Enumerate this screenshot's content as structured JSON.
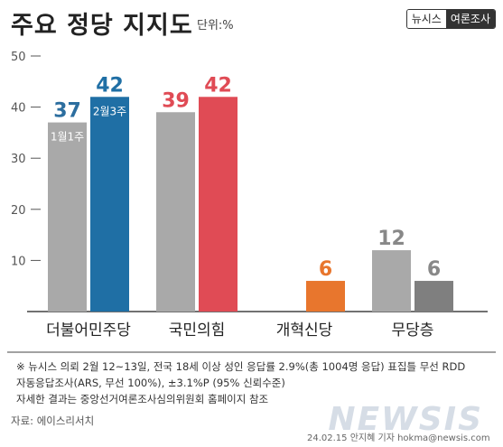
{
  "header": {
    "title": "주요 정당 지지도",
    "unit": "단위:%",
    "brand_left": "뉴시스",
    "brand_right": "여론조사"
  },
  "chart_data": {
    "type": "bar",
    "title": "주요 정당 지지도",
    "xlabel": "",
    "ylabel": "",
    "ylim": [
      0,
      50
    ],
    "yticks": [
      10,
      20,
      30,
      40,
      50
    ],
    "categories": [
      "더불어민주당",
      "국민의힘",
      "개혁신당",
      "무당층"
    ],
    "series": [
      {
        "name": "1월1주",
        "values": [
          37,
          39,
          null,
          12
        ]
      },
      {
        "name": "2월3주",
        "values": [
          42,
          42,
          6,
          6
        ]
      }
    ],
    "colors": {
      "prev": "#a9a9a9",
      "prev_label": "#2c6e9f",
      "more": "#1f6fa5",
      "ppp": "#e04b55",
      "reform": "#e8762d",
      "none": "#7f7f7f",
      "none_prev_label": "#888888"
    },
    "grid": false,
    "legend": "in-bar"
  },
  "footnotes": {
    "line1": "※ 뉴시스 의뢰 2월 12~13일, 전국 18세 이상 성인 응답률 2.9%(총 1004명 응답) 표집틀 무선 RDD",
    "line2": "자동응답조사(ARS, 무선 100%), ±3.1%P (95% 신뢰수준)",
    "line3": "자세한 결과는 중앙선거여론조사심의위원회 홈페이지 참조"
  },
  "source": "자료: 에이스리서치",
  "credit": "24.02.15 안지혜 기자  hokma@newsis.com",
  "watermark": "NEWSIS"
}
